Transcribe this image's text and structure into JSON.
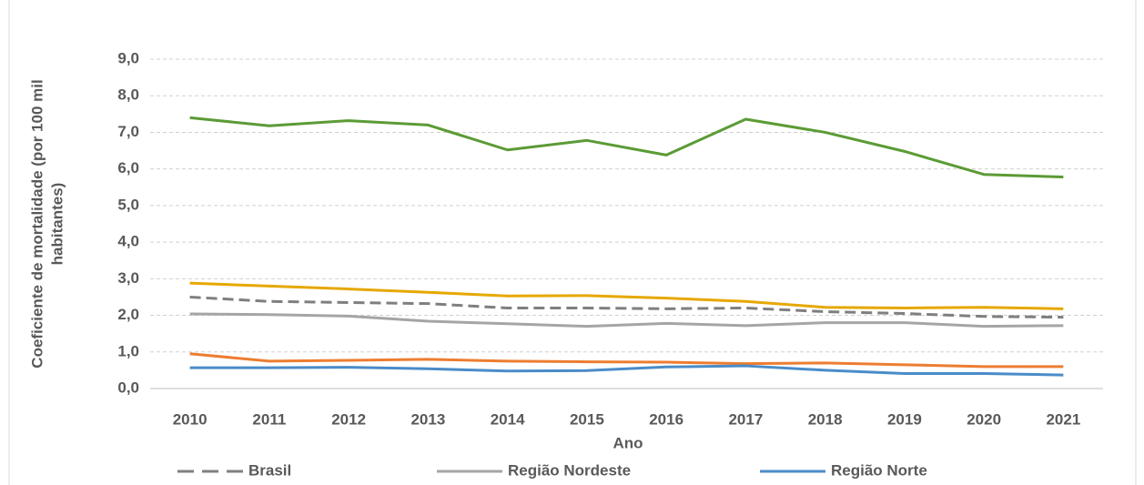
{
  "chart_data": {
    "type": "line",
    "xlabel": "Ano",
    "ylabel": [
      "Coeficiente de mortalidade (por 100 mil",
      "habitantes)"
    ],
    "categories": [
      "2010",
      "2011",
      "2012",
      "2013",
      "2014",
      "2015",
      "2016",
      "2017",
      "2018",
      "2019",
      "2020",
      "2021"
    ],
    "ylim": [
      0,
      9
    ],
    "yticks": [
      {
        "value": 0,
        "label": "0,0"
      },
      {
        "value": 1,
        "label": "1,0"
      },
      {
        "value": 2,
        "label": "2,0"
      },
      {
        "value": 3,
        "label": "3,0"
      },
      {
        "value": 4,
        "label": "4,0"
      },
      {
        "value": 5,
        "label": "5,0"
      },
      {
        "value": 6,
        "label": "6,0"
      },
      {
        "value": 7,
        "label": "7,0"
      },
      {
        "value": 8,
        "label": "8,0"
      },
      {
        "value": 9,
        "label": "9,0"
      }
    ],
    "grid": true,
    "legend": "bottom",
    "series": [
      {
        "color": "#5b9b35",
        "values": [
          7.4,
          7.18,
          7.32,
          7.2,
          6.52,
          6.78,
          6.38,
          7.36,
          7.0,
          6.48,
          5.85,
          5.78
        ]
      },
      {
        "color": "#e6a800",
        "values": [
          2.88,
          2.8,
          2.72,
          2.63,
          2.53,
          2.54,
          2.47,
          2.38,
          2.22,
          2.2,
          2.22,
          2.18
        ]
      },
      {
        "name": "Brasil",
        "color": "#7f7f7f",
        "dashed": true,
        "values": [
          2.5,
          2.38,
          2.35,
          2.32,
          2.2,
          2.2,
          2.18,
          2.2,
          2.1,
          2.05,
          1.97,
          1.95
        ]
      },
      {
        "name": "Região Nordeste",
        "color": "#a5a5a5",
        "values": [
          2.04,
          2.02,
          1.98,
          1.84,
          1.77,
          1.7,
          1.78,
          1.72,
          1.8,
          1.8,
          1.7,
          1.72
        ]
      },
      {
        "color": "#ed7d31",
        "values": [
          0.95,
          0.75,
          0.77,
          0.8,
          0.75,
          0.73,
          0.72,
          0.68,
          0.7,
          0.65,
          0.6,
          0.6
        ]
      },
      {
        "name": "Região Norte",
        "color": "#4a8cc8",
        "values": [
          0.57,
          0.57,
          0.58,
          0.54,
          0.48,
          0.49,
          0.59,
          0.62,
          0.5,
          0.41,
          0.41,
          0.37
        ]
      }
    ]
  }
}
